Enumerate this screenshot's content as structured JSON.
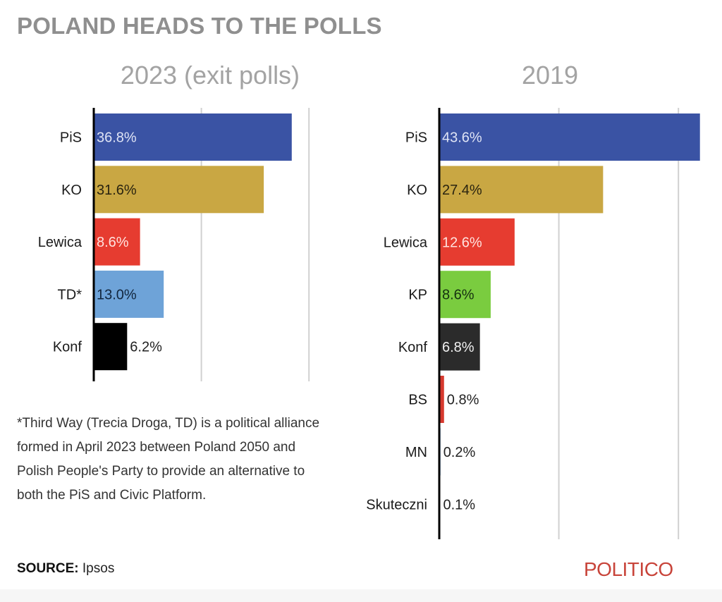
{
  "title": "POLAND HEADS TO THE POLLS",
  "footnote": "*Third Way (Trecia Droga, TD) is a political alliance formed in April 2023 between Poland 2050 and Polish People's Party to provide an alternative to both the PiS and Civic Platform.",
  "source": {
    "label": "SOURCE:",
    "value": "Ipsos"
  },
  "brand": "POLITICO",
  "chart_data": [
    {
      "type": "bar",
      "orientation": "horizontal",
      "title": "2023 (exit polls)",
      "xlabel": "",
      "ylabel": "",
      "xlim": [
        0,
        40
      ],
      "gridlines": [
        20,
        40
      ],
      "grid": true,
      "categories": [
        "PiS",
        "KO",
        "Lewica",
        "TD*",
        "Konf"
      ],
      "values": [
        36.8,
        31.6,
        8.6,
        13.0,
        6.2
      ],
      "labels": [
        "36.8%",
        "31.6%",
        "8.6%",
        "13.0%",
        "6.2%"
      ],
      "colors": [
        "#3a53a4",
        "#c9a743",
        "#e63c30",
        "#6ea3d8",
        "#000000"
      ],
      "label_colors": [
        "#dfe4f5",
        "#2a2410",
        "#ffe3df",
        "#12263d",
        "#222222"
      ],
      "label_outside": [
        false,
        false,
        false,
        false,
        true
      ]
    },
    {
      "type": "bar",
      "orientation": "horizontal",
      "title": "2019",
      "xlabel": "",
      "ylabel": "",
      "xlim": [
        0,
        40
      ],
      "gridlines": [
        20,
        40
      ],
      "grid": true,
      "categories": [
        "PiS",
        "KO",
        "Lewica",
        "KP",
        "Konf",
        "BS",
        "MN",
        "Skuteczni"
      ],
      "values": [
        43.6,
        27.4,
        12.6,
        8.6,
        6.8,
        0.8,
        0.2,
        0.1
      ],
      "labels": [
        "43.6%",
        "27.4%",
        "12.6%",
        "8.6%",
        "6.8%",
        "0.8%",
        "0.2%",
        "0.1%"
      ],
      "colors": [
        "#3a53a4",
        "#c9a743",
        "#e63c30",
        "#7acc3f",
        "#2b2b2b",
        "#d6392e",
        "#3a7fc1",
        "#c0392b"
      ],
      "label_colors": [
        "#dfe4f5",
        "#2a2410",
        "#ffe3df",
        "#153010",
        "#f0f0f0",
        "#222222",
        "#222222",
        "#222222"
      ],
      "label_outside": [
        false,
        false,
        false,
        false,
        false,
        true,
        true,
        true
      ]
    }
  ]
}
